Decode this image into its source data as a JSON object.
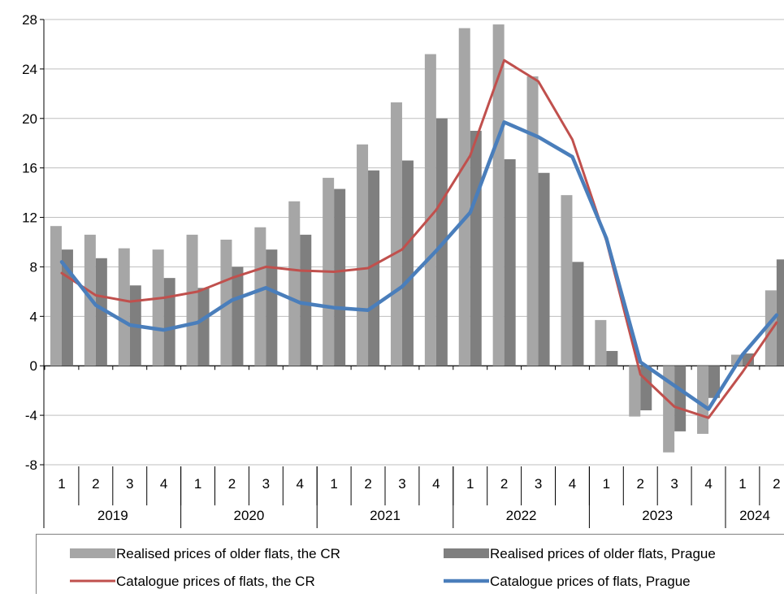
{
  "chart_data": {
    "type": "bar",
    "title": "",
    "xlabel": "",
    "ylabel": "",
    "ylim": [
      -8,
      28
    ],
    "yticks": [
      -8,
      -4,
      0,
      4,
      8,
      12,
      16,
      20,
      24,
      28
    ],
    "grid": "horizontal",
    "legend_position": "bottom",
    "quarters": [
      "1",
      "2",
      "3",
      "4",
      "1",
      "2",
      "3",
      "4",
      "1",
      "2",
      "3",
      "4",
      "1",
      "2",
      "3",
      "4",
      "1",
      "2",
      "3",
      "4",
      "1",
      "2"
    ],
    "years": [
      {
        "label": "2019",
        "quarters": 4
      },
      {
        "label": "2020",
        "quarters": 4
      },
      {
        "label": "2021",
        "quarters": 4
      },
      {
        "label": "2022",
        "quarters": 4
      },
      {
        "label": "2023",
        "quarters": 4
      },
      {
        "label": "2024",
        "quarters": 2
      }
    ],
    "series": [
      {
        "name": "Realised prices of older flats, the CR",
        "kind": "bar",
        "color": "#a6a6a6",
        "values": [
          11.3,
          10.6,
          9.5,
          9.4,
          10.6,
          10.2,
          11.2,
          13.3,
          15.2,
          17.9,
          21.3,
          25.2,
          27.3,
          27.6,
          23.4,
          13.8,
          3.7,
          -4.1,
          -7.0,
          -5.5,
          0.9,
          6.1
        ]
      },
      {
        "name": "Realised prices of older flats, Prague",
        "kind": "bar",
        "color": "#7f7f7f",
        "values": [
          9.4,
          8.7,
          6.5,
          7.1,
          6.3,
          8.0,
          9.4,
          10.6,
          14.3,
          15.8,
          16.6,
          20.0,
          19.0,
          16.7,
          15.6,
          8.4,
          1.2,
          -3.6,
          -5.3,
          -2.6,
          1.0,
          8.6
        ]
      },
      {
        "name": "Catalogue prices of flats, the CR",
        "kind": "line",
        "color": "#c0504d",
        "values": [
          7.5,
          5.7,
          5.2,
          5.5,
          6.0,
          7.1,
          8.0,
          7.7,
          7.6,
          7.9,
          9.4,
          12.6,
          17.0,
          24.7,
          23.0,
          18.3,
          10.1,
          -0.7,
          -3.3,
          -4.2,
          -0.5,
          3.5
        ]
      },
      {
        "name": "Catalogue prices of flats, Prague",
        "kind": "line",
        "color": "#4a7ebb",
        "values": [
          8.4,
          4.9,
          3.3,
          2.9,
          3.5,
          5.3,
          6.3,
          5.1,
          4.7,
          4.5,
          6.4,
          9.3,
          12.4,
          19.7,
          18.5,
          16.9,
          10.3,
          0.3,
          -1.6,
          -3.5,
          0.9,
          4.1
        ]
      }
    ]
  }
}
